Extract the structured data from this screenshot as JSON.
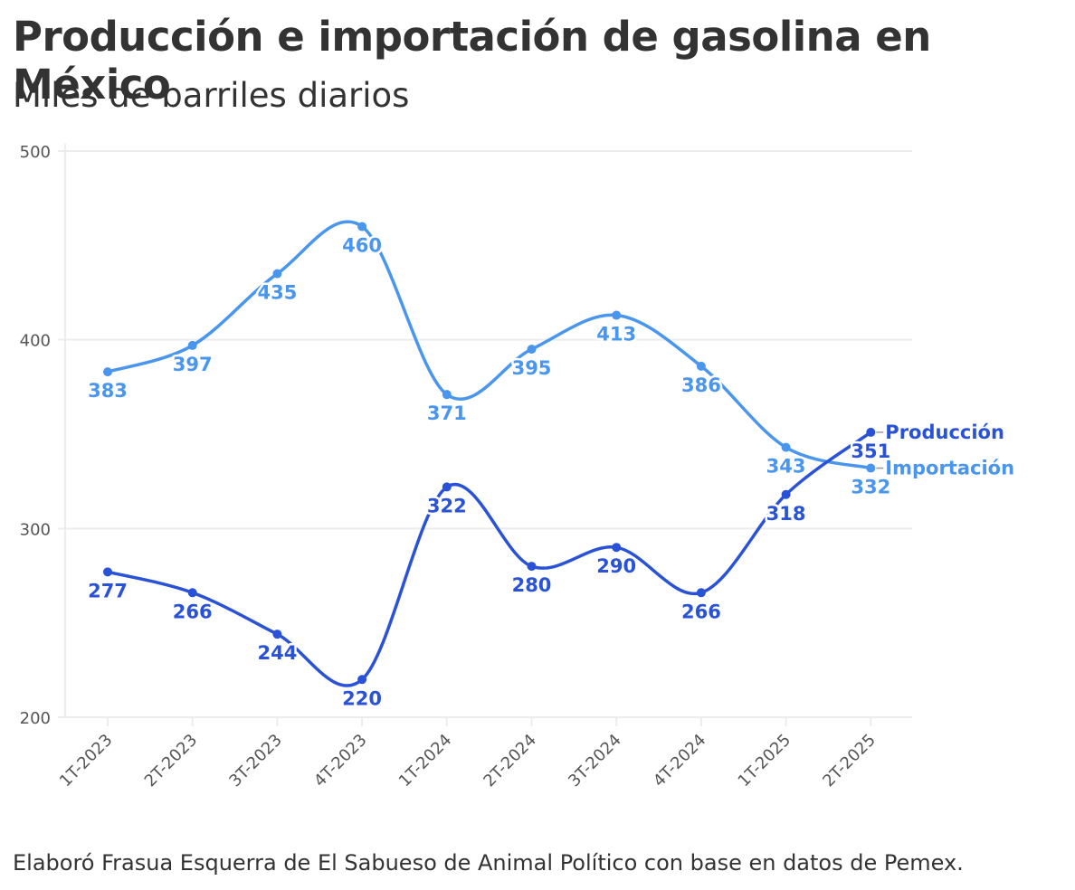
{
  "header": {
    "title": "Producción e importación de gasolina en México",
    "subtitle": "Miles de barriles diarios"
  },
  "footer": {
    "source": "Elaboró Frasua Esquerra de El Sabueso de Animal Político con base en datos de Pemex."
  },
  "chart_data": {
    "type": "line",
    "title": "Producción e importación de gasolina en México",
    "subtitle": "Miles de barriles diarios",
    "xlabel": "",
    "ylabel": "",
    "categories": [
      "1T-2023",
      "2T-2023",
      "3T-2023",
      "4T-2023",
      "1T-2024",
      "2T-2024",
      "3T-2024",
      "4T-2024",
      "1T-2025",
      "2T-2025"
    ],
    "ylim": [
      200,
      500
    ],
    "yticks": [
      200,
      300,
      400,
      500
    ],
    "grid": true,
    "legend": "right-end-labels",
    "series": [
      {
        "name": "Producción",
        "color": "#2a52d6",
        "values": [
          277,
          266,
          244,
          220,
          322,
          280,
          290,
          266,
          318,
          351
        ]
      },
      {
        "name": "Importación",
        "color": "#4a95ee",
        "values": [
          383,
          397,
          435,
          460,
          371,
          395,
          413,
          386,
          343,
          332
        ]
      }
    ]
  }
}
